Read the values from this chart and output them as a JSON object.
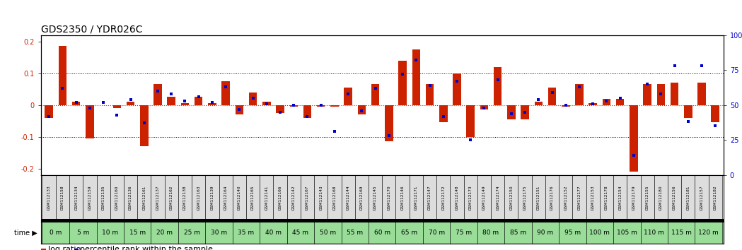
{
  "title": "GDS2350 / YDR026C",
  "gsm_labels": [
    "GSM112133",
    "GSM112158",
    "GSM112134",
    "GSM112159",
    "GSM112135",
    "GSM112160",
    "GSM112136",
    "GSM112161",
    "GSM112137",
    "GSM112162",
    "GSM112138",
    "GSM112163",
    "GSM112139",
    "GSM112164",
    "GSM112140",
    "GSM112165",
    "GSM112141",
    "GSM112166",
    "GSM112142",
    "GSM112167",
    "GSM112143",
    "GSM112168",
    "GSM112144",
    "GSM112169",
    "GSM112145",
    "GSM112170",
    "GSM112146",
    "GSM112171",
    "GSM112147",
    "GSM112172",
    "GSM112148",
    "GSM112173",
    "GSM112149",
    "GSM112174",
    "GSM112150",
    "GSM112175",
    "GSM112151",
    "GSM112176",
    "GSM112152",
    "GSM112177",
    "GSM112153",
    "GSM112178",
    "GSM112154",
    "GSM112179",
    "GSM112155",
    "GSM112180",
    "GSM112156",
    "GSM112181",
    "GSM112157",
    "GSM112182"
  ],
  "time_labels": [
    "0 m",
    "5 m",
    "10 m",
    "15 m",
    "20 m",
    "25 m",
    "30 m",
    "35 m",
    "40 m",
    "45 m",
    "50 m",
    "55 m",
    "60 m",
    "65 m",
    "70 m",
    "75 m",
    "80 m",
    "85 m",
    "90 m",
    "95 m",
    "100 m",
    "105 m",
    "110 m",
    "115 m",
    "120 m"
  ],
  "log_ratio": [
    -0.04,
    0.185,
    0.01,
    -0.105,
    0.0,
    -0.01,
    0.01,
    -0.13,
    0.065,
    0.025,
    0.005,
    0.025,
    0.005,
    0.075,
    -0.03,
    0.04,
    0.01,
    -0.025,
    -0.005,
    -0.04,
    -0.005,
    -0.005,
    0.055,
    -0.03,
    0.065,
    -0.115,
    0.14,
    0.175,
    0.065,
    -0.055,
    0.1,
    -0.1,
    -0.015,
    0.12,
    -0.045,
    -0.045,
    0.01,
    0.055,
    -0.005,
    0.065,
    0.005,
    0.02,
    0.02,
    -0.21,
    0.065,
    0.065,
    0.07,
    -0.04,
    0.07,
    -0.055
  ],
  "percentile_rank": [
    42,
    62,
    52,
    48,
    52,
    43,
    54,
    37,
    60,
    58,
    53,
    56,
    52,
    63,
    47,
    55,
    51,
    45,
    50,
    42,
    50,
    31,
    58,
    46,
    62,
    28,
    72,
    82,
    64,
    42,
    67,
    25,
    48,
    68,
    44,
    45,
    54,
    59,
    50,
    63,
    51,
    53,
    55,
    14,
    65,
    58,
    78,
    38,
    78,
    35
  ],
  "bar_color": "#cc2200",
  "dot_color": "#0000cc",
  "background_color": "#ffffff",
  "ylim": [
    -0.22,
    0.22
  ],
  "yticks_left": [
    -0.2,
    -0.1,
    0.0,
    0.1,
    0.2
  ],
  "yticks_right": [
    0,
    25,
    50,
    75,
    100
  ],
  "title_fontsize": 10,
  "tick_fontsize": 7,
  "legend_fontsize": 8,
  "time_bg_color": "#99dd99",
  "gsm_bg_color": "#dddddd",
  "time_bar_color": "#111111"
}
